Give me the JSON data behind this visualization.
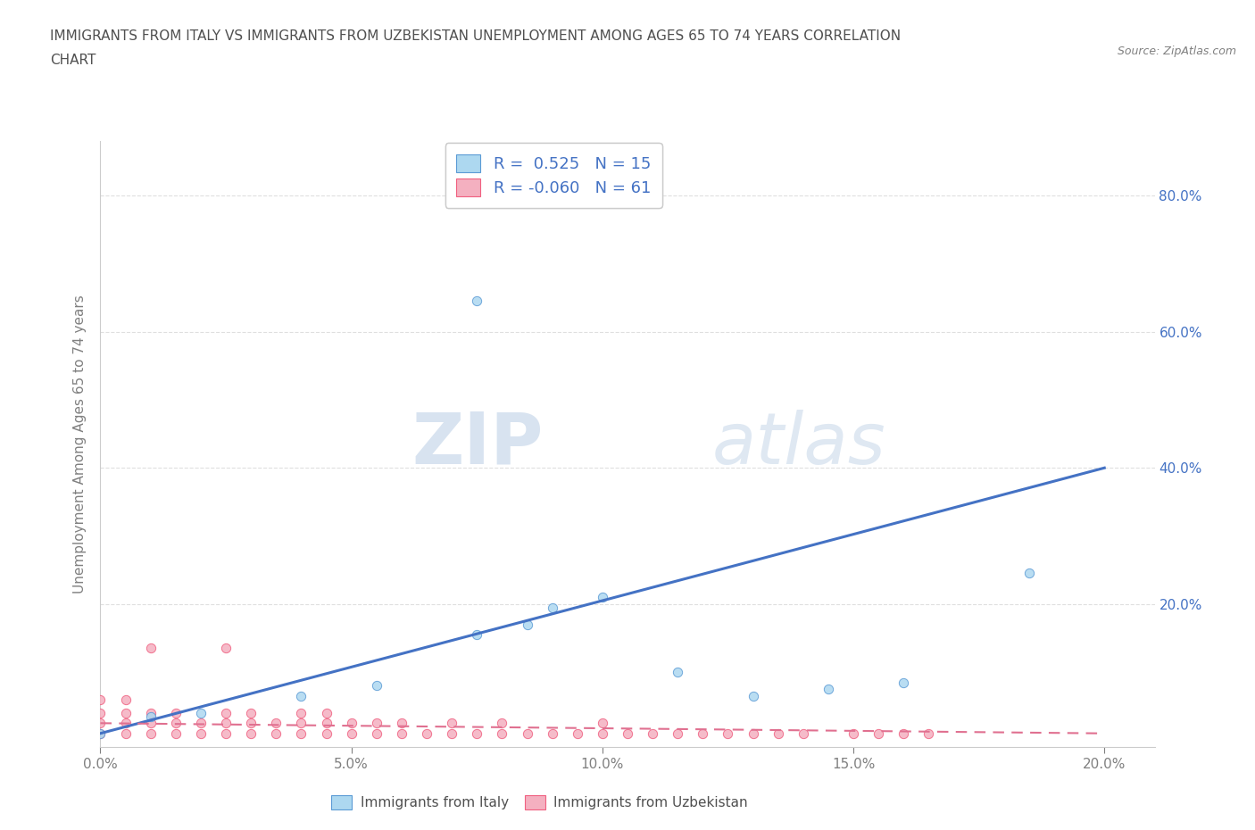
{
  "title_line1": "IMMIGRANTS FROM ITALY VS IMMIGRANTS FROM UZBEKISTAN UNEMPLOYMENT AMONG AGES 65 TO 74 YEARS CORRELATION",
  "title_line2": "CHART",
  "source_text": "Source: ZipAtlas.com",
  "ylabel": "Unemployment Among Ages 65 to 74 years",
  "xlim": [
    0.0,
    0.21
  ],
  "ylim": [
    -0.01,
    0.88
  ],
  "xtick_labels": [
    "0.0%",
    "5.0%",
    "10.0%",
    "15.0%",
    "20.0%"
  ],
  "xtick_vals": [
    0.0,
    0.05,
    0.1,
    0.15,
    0.2
  ],
  "ytick_labels": [
    "20.0%",
    "40.0%",
    "60.0%",
    "80.0%"
  ],
  "ytick_vals": [
    0.2,
    0.4,
    0.6,
    0.8
  ],
  "italy_color": "#add8f0",
  "uzbekistan_color": "#f4b0c0",
  "italy_edge_color": "#5b9bd5",
  "uzbekistan_edge_color": "#f06080",
  "italy_line_color": "#4472c4",
  "uzbekistan_line_color": "#e07090",
  "italy_R": 0.525,
  "italy_N": 15,
  "uzbekistan_R": -0.06,
  "uzbekistan_N": 61,
  "watermark_zip": "ZIP",
  "watermark_atlas": "atlas",
  "watermark_color": "#d0dff0",
  "legend_italy": "Immigrants from Italy",
  "legend_uzbekistan": "Immigrants from Uzbekistan",
  "italy_scatter_x": [
    0.0,
    0.01,
    0.02,
    0.04,
    0.055,
    0.075,
    0.085,
    0.09,
    0.1,
    0.115,
    0.13,
    0.145,
    0.16,
    0.185,
    0.075
  ],
  "italy_scatter_y": [
    0.01,
    0.035,
    0.04,
    0.065,
    0.08,
    0.155,
    0.17,
    0.195,
    0.21,
    0.1,
    0.065,
    0.075,
    0.085,
    0.245,
    0.645
  ],
  "uzbekistan_scatter_x": [
    0.0,
    0.0,
    0.0,
    0.0,
    0.005,
    0.005,
    0.005,
    0.005,
    0.01,
    0.01,
    0.01,
    0.01,
    0.015,
    0.015,
    0.015,
    0.02,
    0.02,
    0.025,
    0.025,
    0.025,
    0.025,
    0.03,
    0.03,
    0.03,
    0.035,
    0.035,
    0.04,
    0.04,
    0.04,
    0.045,
    0.045,
    0.045,
    0.05,
    0.05,
    0.055,
    0.055,
    0.06,
    0.06,
    0.065,
    0.07,
    0.07,
    0.075,
    0.08,
    0.08,
    0.085,
    0.09,
    0.095,
    0.1,
    0.1,
    0.105,
    0.11,
    0.115,
    0.12,
    0.125,
    0.13,
    0.135,
    0.14,
    0.15,
    0.155,
    0.16,
    0.165
  ],
  "uzbekistan_scatter_y": [
    0.01,
    0.025,
    0.04,
    0.06,
    0.01,
    0.025,
    0.04,
    0.06,
    0.01,
    0.025,
    0.04,
    0.135,
    0.01,
    0.025,
    0.04,
    0.01,
    0.025,
    0.01,
    0.025,
    0.04,
    0.135,
    0.01,
    0.025,
    0.04,
    0.01,
    0.025,
    0.01,
    0.025,
    0.04,
    0.01,
    0.025,
    0.04,
    0.01,
    0.025,
    0.01,
    0.025,
    0.01,
    0.025,
    0.01,
    0.01,
    0.025,
    0.01,
    0.01,
    0.025,
    0.01,
    0.01,
    0.01,
    0.01,
    0.025,
    0.01,
    0.01,
    0.01,
    0.01,
    0.01,
    0.01,
    0.01,
    0.01,
    0.01,
    0.01,
    0.01,
    0.01
  ],
  "background_color": "#ffffff",
  "grid_color": "#d8d8d8",
  "title_color": "#505050",
  "axis_color": "#808080",
  "italy_trend_x0": 0.0,
  "italy_trend_y0": 0.01,
  "italy_trend_x1": 0.2,
  "italy_trend_y1": 0.4,
  "uzbek_trend_x0": 0.0,
  "uzbek_trend_y0": 0.025,
  "uzbek_trend_x1": 0.2,
  "uzbek_trend_y1": 0.01
}
